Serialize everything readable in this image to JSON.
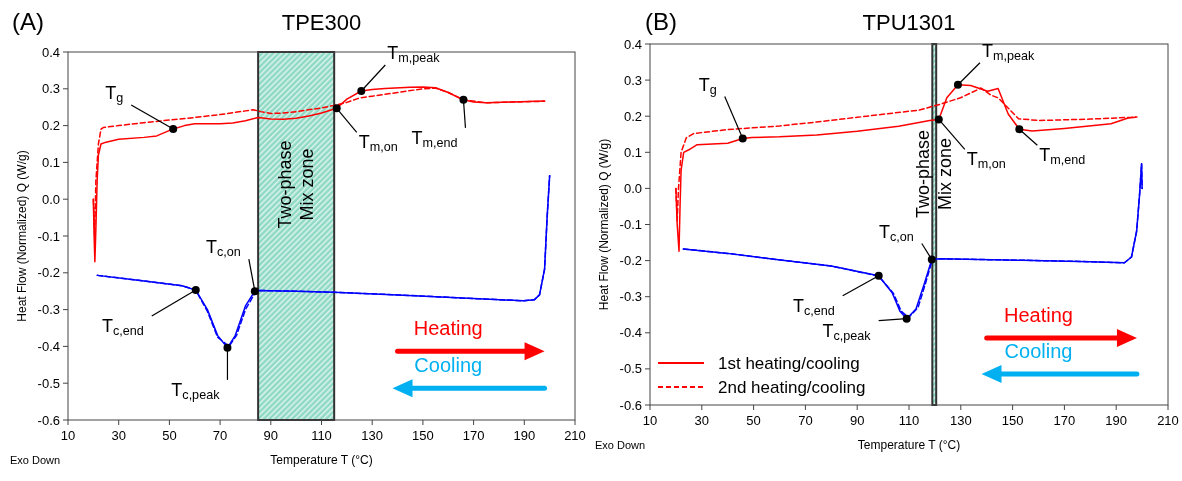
{
  "chart_data": [
    {
      "type": "line",
      "title": "TPE300",
      "xlabel": "Temperature  T (°C)",
      "ylabel": "Heat Flow (Normalized)  Q (W/g)",
      "xlim": [
        10,
        210
      ],
      "xticks": [
        10,
        30,
        50,
        70,
        90,
        110,
        130,
        150,
        170,
        190,
        210
      ],
      "ylim": [
        -0.6,
        0.4
      ],
      "yticks": [
        0.4,
        0.3,
        0.2,
        0.1,
        {
          "value": 0,
          "label": "0.0"
        },
        -0.1,
        -0.2,
        -0.3,
        -0.4,
        -0.5,
        -0.6
      ],
      "grid": false,
      "legend": false,
      "bands": [
        {
          "axis": "x",
          "from": 85,
          "to": 115,
          "label": "Two-phase\nMix zone",
          "color": "#8ed9c4"
        }
      ],
      "annotations": [
        "(A)",
        {
          "text": "T$_{g}$",
          "x": 51.5,
          "y": 0.191
        },
        {
          "text": "T$_{m,peak}$",
          "x": 125.7,
          "y": 0.294
        },
        {
          "text": "T$_{m,on}$",
          "x": 116,
          "y": 0.247
        },
        {
          "text": "T$_{m,end}$",
          "x": 166,
          "y": 0.27
        },
        {
          "text": "T$_{c,on}$",
          "x": 83.7,
          "y": -0.25
        },
        {
          "text": "T$_{c,end}$",
          "x": 60.4,
          "y": -0.247
        },
        {
          "text": "T$_{c,peak}$",
          "x": 72.9,
          "y": -0.404
        },
        "Heating",
        "Cooling",
        "Exo Down"
      ],
      "series": [
        {
          "color": "#ff0000",
          "line_style": "solid",
          "x": [
            20,
            20.3,
            20.6,
            21,
            21.5,
            22,
            23,
            25,
            30,
            40,
            45,
            51.5,
            56,
            60,
            70,
            75,
            80,
            85,
            90,
            95,
            100,
            105,
            110,
            116,
            120,
            125.7,
            130,
            135,
            145,
            150,
            155,
            160,
            166,
            170,
            175,
            185,
            198
          ],
          "values": [
            0,
            -0.1,
            -0.17,
            -0.08,
            0.05,
            0.12,
            0.15,
            0.155,
            0.163,
            0.168,
            0.172,
            0.191,
            0.2,
            0.205,
            0.205,
            0.207,
            0.213,
            0.222,
            0.218,
            0.217,
            0.22,
            0.226,
            0.234,
            0.247,
            0.272,
            0.294,
            0.298,
            0.301,
            0.304,
            0.305,
            0.303,
            0.29,
            0.27,
            0.264,
            0.262,
            0.264,
            0.267
          ]
        },
        {
          "color": "#ff0000",
          "line_style": "dashed",
          "x": [
            20,
            20.5,
            21,
            22,
            23,
            24,
            30,
            40,
            50,
            60,
            70,
            80,
            83,
            86,
            90,
            95,
            100,
            110,
            115,
            120,
            125,
            130,
            140,
            150,
            155,
            160,
            166,
            175,
            185,
            198
          ],
          "values": [
            0,
            -0.1,
            0.05,
            0.15,
            0.19,
            0.195,
            0.2,
            0.208,
            0.215,
            0.222,
            0.23,
            0.24,
            0.243,
            0.238,
            0.233,
            0.234,
            0.238,
            0.248,
            0.255,
            0.263,
            0.275,
            0.28,
            0.29,
            0.3,
            0.302,
            0.29,
            0.27,
            0.262,
            0.264,
            0.266
          ]
        },
        {
          "color": "#0000ff",
          "line_style": "solid",
          "x": [
            21.6,
            40,
            55,
            60.4,
            65,
            69,
            72.9,
            76,
            80,
            83.7,
            85,
            100,
            115,
            140,
            170,
            189.6,
            194,
            196,
            198,
            199,
            200
          ],
          "values": [
            -0.207,
            -0.222,
            -0.235,
            -0.247,
            -0.3,
            -0.37,
            -0.404,
            -0.37,
            -0.29,
            -0.25,
            -0.248,
            -0.25,
            -0.253,
            -0.26,
            -0.27,
            -0.276,
            -0.273,
            -0.26,
            -0.19,
            -0.05,
            0.064
          ]
        },
        {
          "color": "#0000ff",
          "line_style": "dashed",
          "x": [
            21.6,
            40,
            55,
            60.4,
            65,
            69,
            73.5,
            76.5,
            80,
            84,
            85,
            100,
            115,
            140,
            170,
            189.6,
            194,
            196,
            198,
            199,
            200
          ],
          "values": [
            -0.207,
            -0.222,
            -0.235,
            -0.247,
            -0.305,
            -0.375,
            -0.4,
            -0.37,
            -0.3,
            -0.252,
            -0.248,
            -0.25,
            -0.253,
            -0.26,
            -0.27,
            -0.276,
            -0.273,
            -0.26,
            -0.19,
            -0.05,
            0.064
          ]
        }
      ]
    },
    {
      "type": "line",
      "title": "TPU1301",
      "xlabel": "Temperature  T (°C)",
      "ylabel": "Heat Flow (Normalized)  Q (W/g)",
      "xlim": [
        10,
        210
      ],
      "xticks": [
        10,
        30,
        50,
        70,
        90,
        110,
        130,
        150,
        170,
        190,
        210
      ],
      "ylim": [
        -0.6,
        0.4
      ],
      "yticks": [
        0.4,
        0.3,
        0.2,
        0.1,
        {
          "value": 0,
          "label": "0.0"
        },
        -0.1,
        -0.2,
        -0.3,
        -0.4,
        -0.5,
        -0.6
      ],
      "grid": false,
      "legend": "bottom left",
      "bands": [
        {
          "axis": "x",
          "from": 119,
          "to": 120.5,
          "label": "Two-phase\nMix zone",
          "color": "#8ed9c4"
        }
      ],
      "annotations": [
        "(B)",
        {
          "text": "T$_{g}$",
          "x": 45.8,
          "y": 0.138
        },
        {
          "text": "T$_{m,peak}$",
          "x": 128.9,
          "y": 0.287
        },
        {
          "text": "T$_{m,on}$",
          "x": 121.5,
          "y": 0.191
        },
        {
          "text": "T$_{m,end}$",
          "x": 152.6,
          "y": 0.164
        },
        {
          "text": "T$_{c,on}$",
          "x": 118.8,
          "y": -0.197
        },
        {
          "text": "T$_{c,end}$",
          "x": 98.3,
          "y": -0.242
        },
        {
          "text": "T$_{c,peak}$",
          "x": 109.1,
          "y": -0.361
        },
        "Heating",
        "Cooling",
        "Exo Down"
      ],
      "series": [
        {
          "name": "1st heating/cooling",
          "color": "#ff0000",
          "line_style": "solid",
          "x": [
            20,
            20.5,
            21.2,
            21.6,
            22,
            23,
            25,
            28.2,
            40,
            45.8,
            49.3,
            60,
            74.4,
            90,
            106,
            118,
            121.5,
            124.6,
            128.9,
            133.8,
            140.4,
            144.4,
            148.3,
            152.6,
            157.6,
            170,
            188,
            194.6,
            197.5
          ],
          "values": [
            0,
            -0.1,
            -0.174,
            -0.05,
            0.05,
            0.1,
            0.107,
            0.121,
            0.125,
            0.138,
            0.141,
            0.143,
            0.148,
            0.158,
            0.172,
            0.188,
            0.191,
            0.251,
            0.287,
            0.285,
            0.269,
            0.277,
            0.206,
            0.164,
            0.159,
            0.166,
            0.179,
            0.195,
            0.197
          ]
        },
        {
          "name": "2nd heating/cooling",
          "color": "#ff0000",
          "line_style": "dashed",
          "x": [
            20,
            20.5,
            21,
            22,
            24,
            26.9,
            40,
            60,
            74.4,
            90,
            114,
            122,
            129.9,
            137.8,
            141.7,
            144.4,
            152.3,
            160.2,
            180,
            195.9,
            198
          ],
          "values": [
            0,
            -0.09,
            0,
            0.1,
            0.14,
            0.152,
            0.163,
            0.173,
            0.184,
            0.197,
            0.217,
            0.233,
            0.251,
            0.278,
            0.258,
            0.251,
            0.193,
            0.188,
            0.192,
            0.197,
            0.198
          ]
        },
        {
          "color": "#0000ff",
          "line_style": "solid",
          "x": [
            22.9,
            40,
            61.2,
            80,
            98.3,
            103.5,
            106.5,
            109.1,
            112.7,
            116,
            118.8,
            122,
            153.6,
            180,
            193.2,
            195.9,
            197.9,
            199,
            199.8,
            200
          ],
          "values": [
            -0.168,
            -0.18,
            -0.199,
            -0.215,
            -0.242,
            -0.289,
            -0.34,
            -0.361,
            -0.334,
            -0.262,
            -0.197,
            -0.195,
            -0.199,
            -0.203,
            -0.206,
            -0.19,
            -0.118,
            -0.02,
            0.068,
            0
          ]
        },
        {
          "color": "#0000ff",
          "line_style": "dashed",
          "x": [
            22.9,
            40,
            61.2,
            80,
            98.3,
            104,
            107,
            109.8,
            113.5,
            116.5,
            119,
            122,
            153.6,
            180,
            193.2,
            195.9,
            197.9,
            199,
            199.8,
            200
          ],
          "values": [
            -0.168,
            -0.18,
            -0.199,
            -0.215,
            -0.243,
            -0.291,
            -0.34,
            -0.358,
            -0.33,
            -0.26,
            -0.198,
            -0.195,
            -0.199,
            -0.203,
            -0.206,
            -0.19,
            -0.118,
            -0.02,
            0.068,
            0
          ]
        }
      ]
    }
  ]
}
